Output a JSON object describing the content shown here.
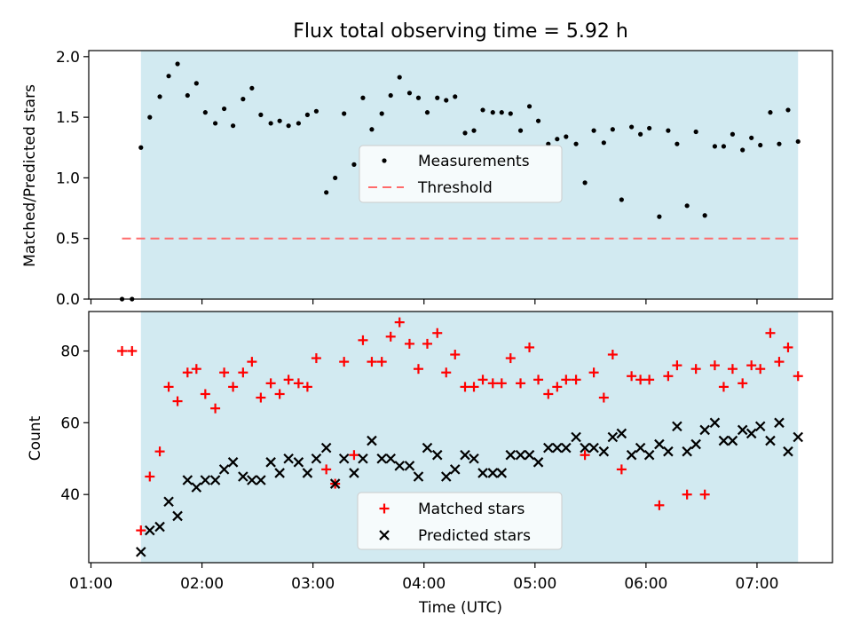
{
  "title": "Flux total observing time = 5.92 h",
  "colors": {
    "observing_span": "#add8e6",
    "measurements": "#000000",
    "threshold": "#ff6b6b",
    "matched": "#ff0000",
    "predicted": "#000000"
  },
  "chart_data": [
    {
      "type": "scatter",
      "panel": "top",
      "ylabel": "Matched/Predicted stars",
      "xlabel": "",
      "xlim_hours": [
        0.98,
        7.68
      ],
      "ylim": [
        0,
        2.05
      ],
      "yticks": [
        0.0,
        0.5,
        1.0,
        1.5,
        2.0
      ],
      "ytick_labels": [
        "0.0",
        "0.5",
        "1.0",
        "1.5",
        "2.0"
      ],
      "observing_span_hours": [
        1.45,
        7.37
      ],
      "legend": {
        "position": "center",
        "entries": [
          "Measurements",
          "Threshold"
        ]
      },
      "threshold": {
        "y": 0.5,
        "x_hours": [
          1.28,
          7.37
        ]
      },
      "series": [
        {
          "name": "Measurements",
          "style": "dot",
          "x_hours": [
            1.28,
            1.37,
            1.45,
            1.53,
            1.62,
            1.7,
            1.78,
            1.87,
            1.95,
            2.03,
            2.12,
            2.2,
            2.28,
            2.37,
            2.45,
            2.53,
            2.62,
            2.7,
            2.78,
            2.87,
            2.95,
            3.03,
            3.12,
            3.2,
            3.28,
            3.37,
            3.45,
            3.53,
            3.62,
            3.7,
            3.78,
            3.87,
            3.95,
            4.03,
            4.12,
            4.2,
            4.28,
            4.37,
            4.45,
            4.53,
            4.62,
            4.7,
            4.78,
            4.87,
            4.95,
            5.03,
            5.12,
            5.2,
            5.28,
            5.37,
            5.45,
            5.53,
            5.62,
            5.7,
            5.78,
            5.87,
            5.95,
            6.03,
            6.12,
            6.2,
            6.28,
            6.37,
            6.45,
            6.53,
            6.62,
            6.7,
            6.78,
            6.87,
            6.95,
            7.03,
            7.12,
            7.2,
            7.28,
            7.37
          ],
          "y": [
            0.0,
            0.0,
            1.25,
            1.5,
            1.67,
            1.84,
            1.94,
            1.68,
            1.78,
            1.54,
            1.45,
            1.57,
            1.43,
            1.65,
            1.74,
            1.52,
            1.45,
            1.47,
            1.43,
            1.45,
            1.52,
            1.55,
            0.88,
            1.0,
            1.53,
            1.11,
            1.66,
            1.4,
            1.53,
            1.68,
            1.83,
            1.7,
            1.66,
            1.54,
            1.66,
            1.64,
            1.67,
            1.37,
            1.39,
            1.56,
            1.54,
            1.54,
            1.53,
            1.39,
            1.59,
            1.47,
            1.28,
            1.32,
            1.34,
            1.28,
            0.96,
            1.39,
            1.29,
            1.4,
            0.82,
            1.42,
            1.36,
            1.41,
            0.68,
            1.39,
            1.28,
            0.77,
            1.38,
            0.69,
            1.26,
            1.26,
            1.36,
            1.23,
            1.33,
            1.27,
            1.54,
            1.28,
            1.56,
            1.3
          ]
        }
      ]
    },
    {
      "type": "scatter",
      "panel": "bottom",
      "ylabel": "Count",
      "xlabel": "Time (UTC)",
      "xlim_hours": [
        0.98,
        7.68
      ],
      "ylim": [
        21,
        91
      ],
      "yticks": [
        40,
        60,
        80
      ],
      "ytick_labels": [
        "40",
        "60",
        "80"
      ],
      "xticks_hours": [
        1,
        2,
        3,
        4,
        5,
        6,
        7
      ],
      "xtick_labels": [
        "01:00",
        "02:00",
        "03:00",
        "04:00",
        "05:00",
        "06:00",
        "07:00"
      ],
      "observing_span_hours": [
        1.45,
        7.37
      ],
      "legend": {
        "position": "lower center",
        "entries": [
          "Matched stars",
          "Predicted stars"
        ]
      },
      "series": [
        {
          "name": "Matched stars",
          "style": "plus",
          "x_hours": [
            1.28,
            1.37,
            1.45,
            1.53,
            1.62,
            1.7,
            1.78,
            1.87,
            1.95,
            2.03,
            2.12,
            2.2,
            2.28,
            2.37,
            2.45,
            2.53,
            2.62,
            2.7,
            2.78,
            2.87,
            2.95,
            3.03,
            3.12,
            3.2,
            3.28,
            3.37,
            3.45,
            3.53,
            3.62,
            3.7,
            3.78,
            3.87,
            3.95,
            4.03,
            4.12,
            4.2,
            4.28,
            4.37,
            4.45,
            4.53,
            4.62,
            4.7,
            4.78,
            4.87,
            4.95,
            5.03,
            5.12,
            5.2,
            5.28,
            5.37,
            5.45,
            5.53,
            5.62,
            5.7,
            5.78,
            5.87,
            5.95,
            6.03,
            6.12,
            6.2,
            6.28,
            6.37,
            6.45,
            6.53,
            6.62,
            6.7,
            6.78,
            6.87,
            6.95,
            7.03,
            7.12,
            7.2,
            7.28,
            7.37
          ],
          "y": [
            80,
            80,
            30,
            45,
            52,
            70,
            66,
            74,
            75,
            68,
            64,
            74,
            70,
            74,
            77,
            67,
            71,
            68,
            72,
            71,
            70,
            78,
            47,
            43,
            77,
            51,
            83,
            77,
            77,
            84,
            88,
            82,
            75,
            82,
            85,
            74,
            79,
            70,
            70,
            72,
            71,
            71,
            78,
            71,
            81,
            72,
            68,
            70,
            72,
            72,
            51,
            74,
            67,
            79,
            47,
            73,
            72,
            72,
            37,
            73,
            76,
            40,
            75,
            40,
            76,
            70,
            75,
            71,
            76,
            75,
            85,
            77,
            81,
            73
          ]
        },
        {
          "name": "Predicted stars",
          "style": "x",
          "x_hours": [
            1.45,
            1.53,
            1.62,
            1.7,
            1.78,
            1.87,
            1.95,
            2.03,
            2.12,
            2.2,
            2.28,
            2.37,
            2.45,
            2.53,
            2.62,
            2.7,
            2.78,
            2.87,
            2.95,
            3.03,
            3.12,
            3.2,
            3.28,
            3.37,
            3.45,
            3.53,
            3.62,
            3.7,
            3.78,
            3.87,
            3.95,
            4.03,
            4.12,
            4.2,
            4.28,
            4.37,
            4.45,
            4.53,
            4.62,
            4.7,
            4.78,
            4.87,
            4.95,
            5.03,
            5.12,
            5.2,
            5.28,
            5.37,
            5.45,
            5.53,
            5.62,
            5.7,
            5.78,
            5.87,
            5.95,
            6.03,
            6.12,
            6.2,
            6.28,
            6.37,
            6.45,
            6.53,
            6.62,
            6.7,
            6.78,
            6.87,
            6.95,
            7.03,
            7.12,
            7.2,
            7.28,
            7.37
          ],
          "y": [
            24,
            30,
            31,
            38,
            34,
            44,
            42,
            44,
            44,
            47,
            49,
            45,
            44,
            44,
            49,
            46,
            50,
            49,
            46,
            50,
            53,
            43,
            50,
            46,
            50,
            55,
            50,
            50,
            48,
            48,
            45,
            53,
            51,
            45,
            47,
            51,
            50,
            46,
            46,
            46,
            51,
            51,
            51,
            49,
            53,
            53,
            53,
            56,
            53,
            53,
            52,
            56,
            57,
            51,
            53,
            51,
            54,
            52,
            59,
            52,
            54,
            58,
            60,
            55,
            55,
            58,
            57,
            59,
            55,
            60,
            52,
            56
          ]
        }
      ]
    }
  ]
}
